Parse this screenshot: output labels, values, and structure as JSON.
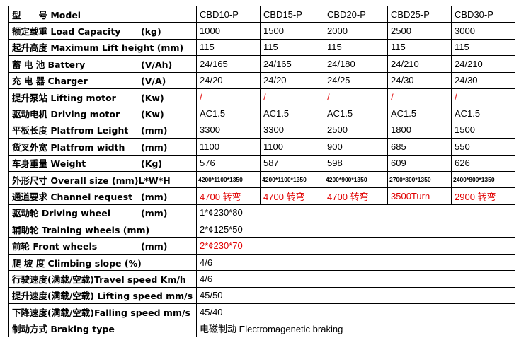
{
  "table": {
    "header": {
      "label": "型　　号 Model",
      "models": [
        "CBD10-P",
        "CBD15-P",
        "CBD20-P",
        "CBD25-P",
        "CBD30-P"
      ]
    },
    "rows": [
      {
        "label": "额定载重 Load Capacity",
        "unit": "(kg)",
        "cells": [
          "1000",
          "1500",
          "2000",
          "2500",
          "3000"
        ]
      },
      {
        "label": "起升高度 Maximum Lift height (mm)",
        "cells": [
          "115",
          "115",
          "115",
          "115",
          "115"
        ]
      },
      {
        "label": "蓄 电 池 Battery",
        "unit": "(V/Ah)",
        "cells": [
          "24/165",
          "24/165",
          "24/180",
          "24/210",
          "24/210"
        ]
      },
      {
        "label": "充 电 器 Charger",
        "unit": "(V/A)",
        "cells": [
          "24/20",
          "24/20",
          "24/25",
          "24/30",
          "24/30"
        ]
      },
      {
        "label": "提升泵站 Lifting motor",
        "unit": "(Kw)",
        "cells": [
          "/",
          "/",
          "/",
          "/",
          "/"
        ],
        "color": "#e00000"
      },
      {
        "label": "驱动电机 Driving motor",
        "unit": "(Kw)",
        "cells": [
          "AC1.5",
          "AC1.5",
          "AC1.5",
          "AC1.5",
          "AC1.5"
        ]
      },
      {
        "label": "平板长度 Platfrom Leight",
        "unit": "(mm)",
        "cells": [
          "3300",
          "3300",
          "2500",
          "1800",
          "1500"
        ]
      },
      {
        "label": "货叉外宽 Platfrom width",
        "unit": "(mm)",
        "cells": [
          "1100",
          "1100",
          "900",
          "685",
          "550"
        ]
      },
      {
        "label": "车身重量 Weight",
        "unit": "(Kg)",
        "cells": [
          "576",
          "587",
          "598",
          "609",
          "626"
        ]
      },
      {
        "label": "外形尺寸 Overall size (mm)L*W*H",
        "cells": [
          "4200*1100*1350",
          "4200*1100*1350",
          "4200*900*1350",
          "2700*800*1350",
          "2400*800*1350"
        ],
        "small": true
      },
      {
        "label": "通道要求 Channel request",
        "unit": "(mm)",
        "cells": [
          "4700 转弯",
          "4700 转弯",
          "4700 转弯",
          "3500Turn",
          "2900 转弯"
        ],
        "color": "#e00000"
      },
      {
        "label": "驱动轮 Driving wheel",
        "unit": "(mm)",
        "value": "1*¢230*80"
      },
      {
        "label": "辅助轮 Training wheels (mm)",
        "value": "2*¢125*50"
      },
      {
        "label": "前轮 Front wheels",
        "unit": "(mm)",
        "value": "2*¢230*70",
        "color": "#e00000"
      },
      {
        "label": "爬 坡 度 Climbing slope (%)",
        "value": "4/6"
      },
      {
        "label": "行驶速度(满载/空载)Travel speed Km/h",
        "value": "4/6"
      },
      {
        "label": "提升速度(满载/空载) Lifting speed mm/s",
        "value": "45/50"
      },
      {
        "label": "下降速度(满载/空载)Falling speed mm/s",
        "value": "45/40"
      },
      {
        "label": "制动方式 Braking type",
        "value": "电磁制动 Electromagenetic braking"
      }
    ]
  }
}
